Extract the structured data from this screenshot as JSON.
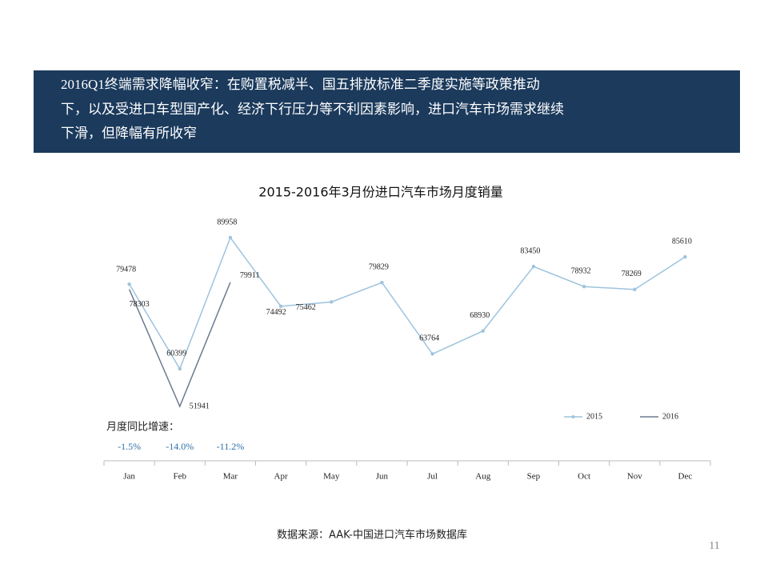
{
  "header": {
    "lines": [
      "2016Q1终端需求降幅收窄：在购置税减半、国五排放标准二季度实施等政策推动",
      "下，以及受进口车型国产化、经济下行压力等不利因素影响，进口汽车市场需求继续",
      "下滑，但降幅有所收窄"
    ]
  },
  "chart_data": {
    "type": "line",
    "title": "2015-2016年3月份进口汽车市场月度销量",
    "categories": [
      "Jan",
      "Feb",
      "Mar",
      "Apr",
      "May",
      "Jun",
      "Jul",
      "Aug",
      "Sep",
      "Oct",
      "Nov",
      "Dec"
    ],
    "series": [
      {
        "name": "2015",
        "color": "#9ec3dd",
        "values": [
          79478,
          60399,
          89958,
          74492,
          75462,
          79829,
          63764,
          68930,
          83450,
          78932,
          78269,
          85610
        ]
      },
      {
        "name": "2016",
        "color": "#6b7a90",
        "values": [
          78303,
          51941,
          79911,
          null,
          null,
          null,
          null,
          null,
          null,
          null,
          null,
          null
        ]
      }
    ],
    "growth": {
      "label": "月度同比增速：",
      "texts": [
        "-1.5%",
        "-14.0%",
        "-11.2%"
      ]
    }
  },
  "footer": {
    "source": "数据来源：AAK-中国进口汽车市场数据库",
    "page": "11"
  }
}
